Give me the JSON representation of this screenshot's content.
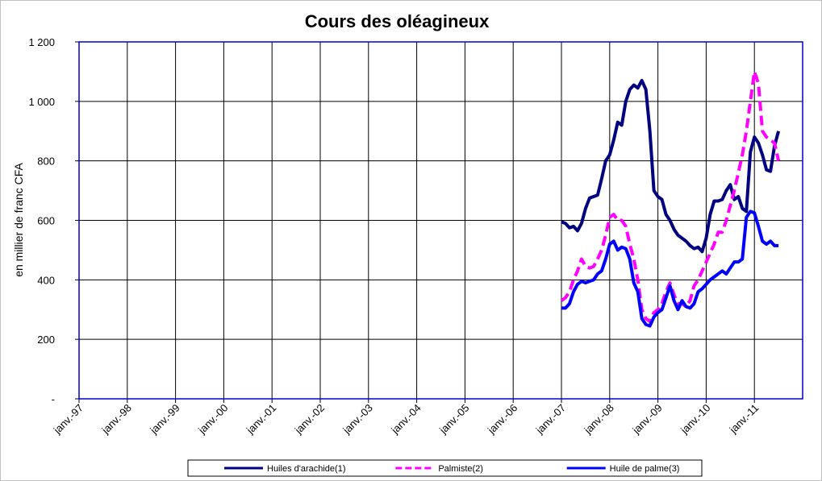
{
  "chart_data": {
    "type": "line",
    "title": "Cours des oléagineux",
    "y_label": "en millier de franc CFA",
    "categories": [
      "janv.-97",
      null,
      null,
      null,
      null,
      null,
      null,
      null,
      null,
      null,
      null,
      null,
      "janv.-98",
      null,
      null,
      null,
      null,
      null,
      null,
      null,
      null,
      null,
      null,
      null,
      "janv.-99",
      null,
      null,
      null,
      null,
      null,
      null,
      null,
      null,
      null,
      null,
      null,
      "janv.-00",
      null,
      null,
      null,
      null,
      null,
      null,
      null,
      null,
      null,
      null,
      null,
      "janv.-01",
      null,
      null,
      null,
      null,
      null,
      null,
      null,
      null,
      null,
      null,
      null,
      "janv.-02",
      null,
      null,
      null,
      null,
      null,
      null,
      null,
      null,
      null,
      null,
      null,
      "janv.-03",
      null,
      null,
      null,
      null,
      null,
      null,
      null,
      null,
      null,
      null,
      null,
      "janv.-04",
      null,
      null,
      null,
      null,
      null,
      null,
      null,
      null,
      null,
      null,
      null,
      "janv.-05",
      null,
      null,
      null,
      null,
      null,
      null,
      null,
      null,
      null,
      null,
      null,
      "janv.-06",
      null,
      null,
      null,
      null,
      null,
      null,
      null,
      null,
      null,
      null,
      null,
      "janv.-07",
      null,
      null,
      null,
      null,
      null,
      null,
      null,
      null,
      null,
      null,
      null,
      "janv.-08",
      null,
      null,
      null,
      null,
      null,
      null,
      null,
      null,
      null,
      null,
      null,
      "janv.-09",
      null,
      null,
      null,
      null,
      null,
      null,
      null,
      null,
      null,
      null,
      null,
      "janv.-10",
      null,
      null,
      null,
      null,
      null,
      null,
      null,
      null,
      null,
      null,
      null,
      "janv.-11",
      null,
      null,
      null,
      null,
      null,
      null,
      null,
      null,
      null,
      null,
      null
    ],
    "series": [
      {
        "name": "Huiles d'arachide(1)",
        "color": "#000080",
        "style": "solid",
        "values": [
          null,
          null,
          null,
          null,
          null,
          null,
          null,
          null,
          null,
          null,
          null,
          null,
          null,
          null,
          null,
          null,
          null,
          null,
          null,
          null,
          null,
          null,
          null,
          null,
          null,
          null,
          null,
          null,
          null,
          null,
          null,
          null,
          null,
          null,
          null,
          null,
          null,
          null,
          null,
          null,
          null,
          null,
          null,
          null,
          null,
          null,
          null,
          null,
          null,
          null,
          null,
          null,
          null,
          null,
          null,
          null,
          null,
          null,
          null,
          null,
          null,
          null,
          null,
          null,
          null,
          null,
          null,
          null,
          null,
          null,
          null,
          null,
          null,
          null,
          null,
          null,
          null,
          null,
          null,
          null,
          null,
          null,
          null,
          null,
          null,
          null,
          null,
          null,
          null,
          null,
          null,
          null,
          null,
          null,
          null,
          null,
          null,
          null,
          null,
          null,
          null,
          null,
          null,
          null,
          null,
          null,
          null,
          null,
          null,
          null,
          null,
          null,
          null,
          null,
          null,
          null,
          null,
          null,
          null,
          null,
          595,
          590,
          575,
          580,
          565,
          590,
          640,
          675,
          680,
          685,
          740,
          800,
          820,
          870,
          930,
          920,
          1000,
          1040,
          1055,
          1045,
          1070,
          1040,
          900,
          700,
          680,
          670,
          620,
          600,
          570,
          550,
          540,
          530,
          515,
          505,
          510,
          495,
          540,
          620,
          665,
          665,
          670,
          700,
          720,
          670,
          680,
          640,
          630,
          830,
          880,
          860,
          820,
          770,
          765,
          850,
          900,
          null,
          null,
          null,
          null,
          null
        ]
      },
      {
        "name": "Palmiste(2)",
        "color": "#ff00ff",
        "style": "dashed",
        "values": [
          null,
          null,
          null,
          null,
          null,
          null,
          null,
          null,
          null,
          null,
          null,
          null,
          null,
          null,
          null,
          null,
          null,
          null,
          null,
          null,
          null,
          null,
          null,
          null,
          null,
          null,
          null,
          null,
          null,
          null,
          null,
          null,
          null,
          null,
          null,
          null,
          null,
          null,
          null,
          null,
          null,
          null,
          null,
          null,
          null,
          null,
          null,
          null,
          null,
          null,
          null,
          null,
          null,
          null,
          null,
          null,
          null,
          null,
          null,
          null,
          null,
          null,
          null,
          null,
          null,
          null,
          null,
          null,
          null,
          null,
          null,
          null,
          null,
          null,
          null,
          null,
          null,
          null,
          null,
          null,
          null,
          null,
          null,
          null,
          null,
          null,
          null,
          null,
          null,
          null,
          null,
          null,
          null,
          null,
          null,
          null,
          null,
          null,
          null,
          null,
          null,
          null,
          null,
          null,
          null,
          null,
          null,
          null,
          null,
          null,
          null,
          null,
          null,
          null,
          null,
          null,
          null,
          null,
          null,
          null,
          330,
          340,
          360,
          400,
          430,
          470,
          445,
          440,
          445,
          470,
          500,
          550,
          610,
          620,
          600,
          600,
          580,
          520,
          470,
          400,
          300,
          270,
          260,
          290,
          300,
          320,
          360,
          390,
          350,
          320,
          320,
          310,
          330,
          380,
          400,
          430,
          460,
          490,
          520,
          560,
          560,
          600,
          650,
          700,
          760,
          820,
          900,
          1000,
          1100,
          1060,
          900,
          880,
          870,
          860,
          800,
          null,
          null,
          null,
          null,
          null
        ]
      },
      {
        "name": "Huile de palme(3)",
        "color": "#0000ff",
        "style": "solid",
        "values": [
          null,
          null,
          null,
          null,
          null,
          null,
          null,
          null,
          null,
          null,
          null,
          null,
          null,
          null,
          null,
          null,
          null,
          null,
          null,
          null,
          null,
          null,
          null,
          null,
          null,
          null,
          null,
          null,
          null,
          null,
          null,
          null,
          null,
          null,
          null,
          null,
          null,
          null,
          null,
          null,
          null,
          null,
          null,
          null,
          null,
          null,
          null,
          null,
          null,
          null,
          null,
          null,
          null,
          null,
          null,
          null,
          null,
          null,
          null,
          null,
          null,
          null,
          null,
          null,
          null,
          null,
          null,
          null,
          null,
          null,
          null,
          null,
          null,
          null,
          null,
          null,
          null,
          null,
          null,
          null,
          null,
          null,
          null,
          null,
          null,
          null,
          null,
          null,
          null,
          null,
          null,
          null,
          null,
          null,
          null,
          null,
          null,
          null,
          null,
          null,
          null,
          null,
          null,
          null,
          null,
          null,
          null,
          null,
          null,
          null,
          null,
          null,
          null,
          null,
          null,
          null,
          null,
          null,
          null,
          null,
          305,
          305,
          320,
          360,
          385,
          395,
          390,
          395,
          400,
          420,
          430,
          470,
          520,
          530,
          500,
          510,
          505,
          470,
          390,
          360,
          270,
          250,
          245,
          275,
          290,
          300,
          340,
          380,
          330,
          300,
          330,
          310,
          305,
          320,
          360,
          370,
          385,
          400,
          410,
          420,
          430,
          420,
          440,
          460,
          460,
          470,
          610,
          630,
          625,
          580,
          530,
          520,
          530,
          515,
          515,
          null,
          null,
          null,
          null,
          null
        ]
      }
    ],
    "ylim": [
      0,
      1200
    ],
    "yticks": [
      {
        "value": 0,
        "label": "-"
      },
      200,
      400,
      600,
      800,
      {
        "value": 1000,
        "label": "1 000"
      },
      {
        "value": 1200,
        "label": "1 200"
      }
    ],
    "grid": true,
    "legend": "bottom"
  }
}
